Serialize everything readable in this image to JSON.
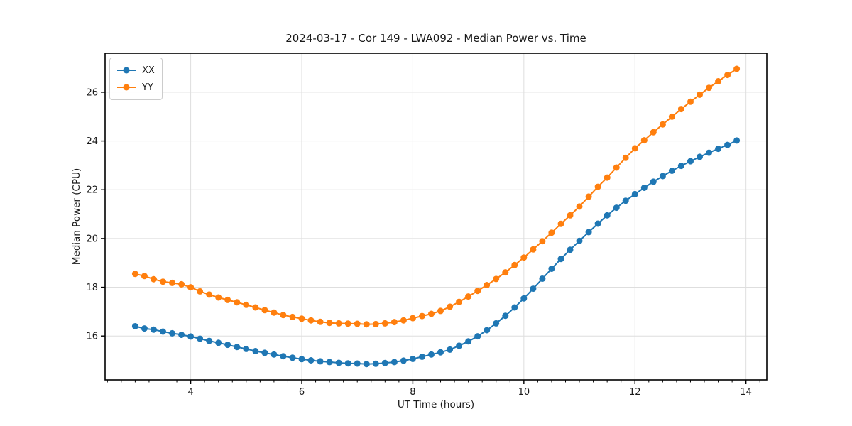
{
  "chart_data": {
    "type": "line",
    "title": "2024-03-17 - Cor 149 - LWA092 - Median Power vs. Time",
    "xlabel": "UT Time (hours)",
    "ylabel": "Median Power (CPU)",
    "xlim": [
      2.458,
      14.375
    ],
    "ylim": [
      14.2,
      27.6
    ],
    "xticks": [
      4,
      6,
      8,
      10,
      12,
      14
    ],
    "yticks": [
      16,
      18,
      20,
      22,
      24,
      26
    ],
    "x_minor_tick_step": 0.25,
    "grid": true,
    "grid_color": "#dedede",
    "legend_position": "upper left",
    "x": [
      3.0,
      3.1667,
      3.3333,
      3.5,
      3.6667,
      3.8333,
      4.0,
      4.1667,
      4.3333,
      4.5,
      4.6667,
      4.8333,
      5.0,
      5.1667,
      5.3333,
      5.5,
      5.6667,
      5.8333,
      6.0,
      6.1667,
      6.3333,
      6.5,
      6.6667,
      6.8333,
      7.0,
      7.1667,
      7.3333,
      7.5,
      7.6667,
      7.8333,
      8.0,
      8.1667,
      8.3333,
      8.5,
      8.6667,
      8.8333,
      9.0,
      9.1667,
      9.3333,
      9.5,
      9.6667,
      9.8333,
      10.0,
      10.1667,
      10.3333,
      10.5,
      10.6667,
      10.8333,
      11.0,
      11.1667,
      11.3333,
      11.5,
      11.6667,
      11.8333,
      12.0,
      12.1667,
      12.3333,
      12.5,
      12.6667,
      12.8333,
      13.0,
      13.1667,
      13.3333,
      13.5,
      13.6667,
      13.8333
    ],
    "series": [
      {
        "name": "XX",
        "color": "#1f77b4",
        "values": [
          16.4,
          16.31,
          16.26,
          16.18,
          16.11,
          16.05,
          15.98,
          15.89,
          15.8,
          15.72,
          15.64,
          15.55,
          15.47,
          15.38,
          15.31,
          15.24,
          15.17,
          15.11,
          15.05,
          15.0,
          14.96,
          14.93,
          14.9,
          14.88,
          14.87,
          14.85,
          14.86,
          14.89,
          14.93,
          14.99,
          15.06,
          15.15,
          15.24,
          15.33,
          15.44,
          15.6,
          15.78,
          15.99,
          16.24,
          16.52,
          16.83,
          17.17,
          17.54,
          17.94,
          18.35,
          18.76,
          19.16,
          19.54,
          19.9,
          20.26,
          20.61,
          20.95,
          21.26,
          21.55,
          21.82,
          22.08,
          22.33,
          22.56,
          22.78,
          22.98,
          23.17,
          23.35,
          23.52,
          23.68,
          23.84,
          24.02
        ]
      },
      {
        "name": "YY",
        "color": "#ff7f0e",
        "values": [
          18.55,
          18.46,
          18.33,
          18.23,
          18.18,
          18.12,
          18.0,
          17.83,
          17.7,
          17.58,
          17.48,
          17.38,
          17.28,
          17.17,
          17.06,
          16.96,
          16.86,
          16.78,
          16.71,
          16.64,
          16.58,
          16.54,
          16.52,
          16.51,
          16.5,
          16.48,
          16.49,
          16.52,
          16.57,
          16.64,
          16.73,
          16.82,
          16.91,
          17.03,
          17.2,
          17.4,
          17.62,
          17.85,
          18.09,
          18.34,
          18.61,
          18.91,
          19.22,
          19.55,
          19.89,
          20.24,
          20.6,
          20.95,
          21.31,
          21.72,
          22.12,
          22.5,
          22.91,
          23.31,
          23.7,
          24.03,
          24.36,
          24.68,
          25.0,
          25.31,
          25.61,
          25.9,
          26.18,
          26.45,
          26.71,
          26.96
        ]
      }
    ]
  }
}
